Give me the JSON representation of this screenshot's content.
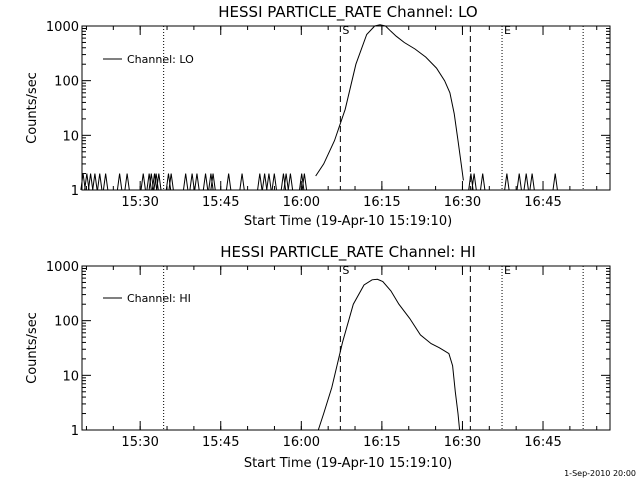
{
  "chart_data": [
    {
      "type": "line",
      "title": "HESSI PARTICLE_RATE Channel: LO",
      "xlabel": "Start Time (19-Apr-10 15:19:10)",
      "ylabel": "Counts/sec",
      "x_unit": "minutes after 15:19:10",
      "xlim": [
        0,
        98.3
      ],
      "ylim": [
        1,
        1000
      ],
      "yscale": "log",
      "xtick_labels": [
        "15:30",
        "15:45",
        "16:00",
        "16:15",
        "16:30",
        "16:45"
      ],
      "xtick_values": [
        10.83,
        25.83,
        40.83,
        55.83,
        70.83,
        85.83
      ],
      "ytick_labels": [
        "1",
        "10",
        "100",
        "1000"
      ],
      "ytick_values": [
        1,
        10,
        100,
        1000
      ],
      "legend": {
        "position": "top-left",
        "entries": [
          "Channel: LO"
        ]
      },
      "markers": [
        {
          "label": "",
          "x": 15.2,
          "style": "dotted"
        },
        {
          "label": "S",
          "x": 48.1,
          "style": "dashed"
        },
        {
          "label": "",
          "x": 72.3,
          "style": "dashed"
        },
        {
          "label": "E",
          "x": 78.2,
          "style": "dotted"
        },
        {
          "label": "",
          "x": 93.3,
          "style": "dotted"
        }
      ],
      "series": [
        {
          "name": "Channel: LO",
          "background_spike_x": [
            0.2,
            0.9,
            1.6,
            2.4,
            3.3,
            4.4,
            7.0,
            8.4,
            11.4,
            12.5,
            12.9,
            13.5,
            13.8,
            14.3,
            16.1,
            16.6,
            19.3,
            20.5,
            21.4,
            23.0,
            24.0,
            24.4,
            27.3,
            29.8,
            33.1,
            34.0,
            34.8,
            35.8,
            37.5,
            38.0,
            38.8,
            40.9,
            41.4,
            72.4,
            73.0,
            74.6,
            79.1,
            81.4,
            82.7,
            83.8,
            88.1
          ],
          "x": [
            43.5,
            45.0,
            47.0,
            49.0,
            51.0,
            53.0,
            54.5,
            55.5,
            56.5,
            57.5,
            58.5,
            60.0,
            62.0,
            64.0,
            66.0,
            67.5,
            68.5,
            69.3,
            70.0,
            70.6,
            71.0
          ],
          "y": [
            1.8,
            3.0,
            8.0,
            30.0,
            200.0,
            700.0,
            1000.0,
            1050.0,
            1000.0,
            800.0,
            650.0,
            500.0,
            380.0,
            270.0,
            170.0,
            100.0,
            60.0,
            25.0,
            8.0,
            3.0,
            1.5
          ]
        }
      ]
    },
    {
      "type": "line",
      "title": "HESSI PARTICLE_RATE Channel: HI",
      "xlabel": "Start Time (19-Apr-10 15:19:10)",
      "ylabel": "Counts/sec",
      "x_unit": "minutes after 15:19:10",
      "xlim": [
        0,
        98.3
      ],
      "ylim": [
        1,
        1000
      ],
      "yscale": "log",
      "xtick_labels": [
        "15:30",
        "15:45",
        "16:00",
        "16:15",
        "16:30",
        "16:45"
      ],
      "xtick_values": [
        10.83,
        25.83,
        40.83,
        55.83,
        70.83,
        85.83
      ],
      "ytick_labels": [
        "1",
        "10",
        "100",
        "1000"
      ],
      "ytick_values": [
        1,
        10,
        100,
        1000
      ],
      "legend": {
        "position": "top-left",
        "entries": [
          "Channel: HI"
        ]
      },
      "markers": [
        {
          "label": "",
          "x": 15.2,
          "style": "dotted"
        },
        {
          "label": "S",
          "x": 48.1,
          "style": "dashed"
        },
        {
          "label": "",
          "x": 72.3,
          "style": "dashed"
        },
        {
          "label": "E",
          "x": 78.2,
          "style": "dotted"
        },
        {
          "label": "",
          "x": 93.3,
          "style": "dotted"
        }
      ],
      "series": [
        {
          "name": "Channel: HI",
          "x": [
            44.0,
            45.0,
            46.5,
            48.5,
            50.5,
            52.5,
            54.0,
            55.0,
            56.0,
            57.5,
            59.0,
            61.0,
            63.0,
            65.0,
            66.5,
            67.5,
            68.3,
            69.0,
            69.5,
            70.0,
            70.3
          ],
          "y": [
            1.0,
            2.0,
            6.0,
            40.0,
            200.0,
            450.0,
            560.0,
            570.0,
            520.0,
            350.0,
            200.0,
            110.0,
            55.0,
            38.0,
            32.0,
            28.0,
            25.0,
            15.0,
            5.0,
            2.0,
            1.0
          ]
        }
      ]
    }
  ],
  "footer": {
    "timestamp": "1-Sep-2010 20:00"
  }
}
